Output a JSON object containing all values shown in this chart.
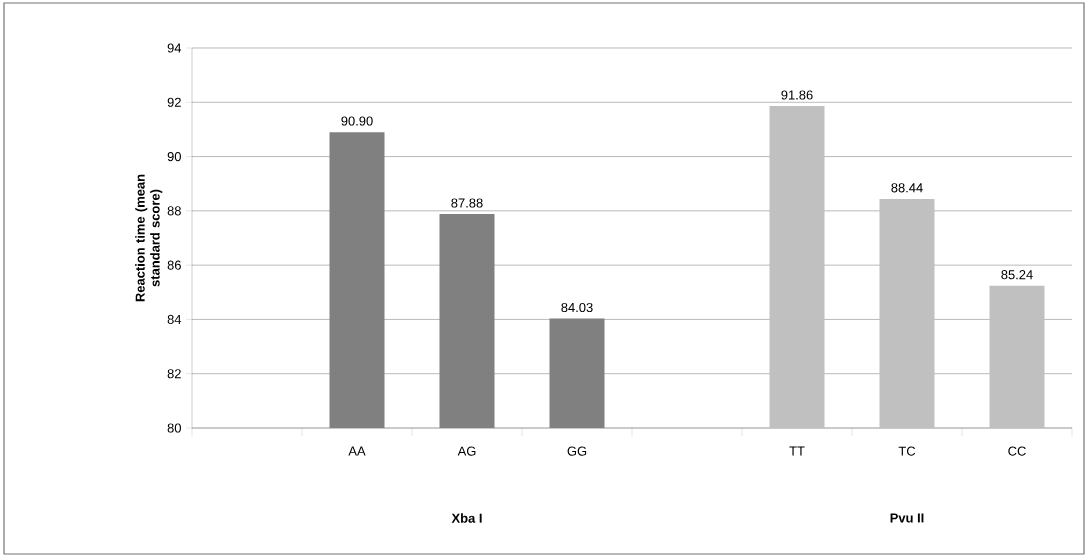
{
  "chart_data": {
    "type": "bar",
    "ylabel": "Reaction time (mean standard score)",
    "categories": [
      null,
      "AA",
      "AG",
      "GG",
      null,
      "TT",
      "TC",
      "CC"
    ],
    "values": [
      null,
      90.9,
      87.88,
      84.03,
      null,
      91.86,
      88.44,
      85.24
    ],
    "value_labels": [
      null,
      "90.90",
      "87.88",
      "84.03",
      null,
      "91.86",
      "88.44",
      "85.24"
    ],
    "colors": [
      "#808080",
      "#808080",
      "#808080",
      "#808080",
      "#c0c0c0",
      "#c0c0c0",
      "#c0c0c0",
      "#c0c0c0"
    ],
    "ylim": [
      80,
      94
    ],
    "yticks": [
      80,
      82,
      84,
      86,
      88,
      90,
      92,
      94
    ],
    "grid": "y",
    "annotations": [
      "Xba I",
      "Pvu II"
    ]
  }
}
